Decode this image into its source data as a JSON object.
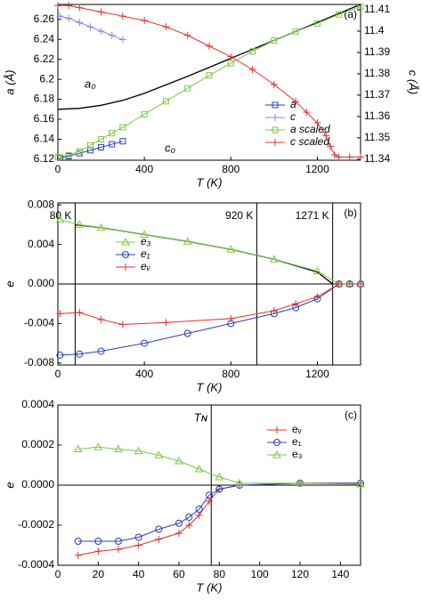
{
  "chart_data": [
    {
      "type": "line",
      "panel_label": "(a)",
      "xlabel": "T (K)",
      "ylabel": "a (Å)",
      "y2label": "c (Å)",
      "xlim": [
        0,
        1400
      ],
      "xticks": [
        0,
        400,
        800,
        1200
      ],
      "ylim": [
        6.119,
        6.275
      ],
      "yticks": [
        6.12,
        6.14,
        6.16,
        6.18,
        6.2,
        6.22,
        6.24,
        6.26
      ],
      "y2lim": [
        11.3395,
        11.4125
      ],
      "y2ticks": [
        11.34,
        11.35,
        11.36,
        11.37,
        11.38,
        11.39,
        11.4,
        11.41
      ],
      "annotations": [
        "a₀",
        "c₀"
      ],
      "legend": "lower right",
      "series": [
        {
          "name": "a",
          "color": "#2a3fb5",
          "marker": "square",
          "x": [
            10,
            50,
            100,
            150,
            200,
            250,
            300
          ],
          "values": [
            6.1215,
            6.123,
            6.126,
            6.129,
            6.132,
            6.135,
            6.138
          ]
        },
        {
          "name": "c",
          "color": "#9a7be0",
          "marker": "plus",
          "axis": "y2",
          "x": [
            10,
            50,
            100,
            150,
            200,
            250,
            300
          ],
          "values": [
            11.407,
            11.406,
            11.404,
            11.402,
            11.4,
            11.398,
            11.396
          ]
        },
        {
          "name": "a scaled",
          "color": "#7ac943",
          "marker": "square",
          "x": [
            0,
            50,
            100,
            150,
            200,
            250,
            300,
            400,
            500,
            600,
            700,
            800,
            900,
            1000,
            1100,
            1200,
            1300,
            1400
          ],
          "values": [
            6.122,
            6.124,
            6.128,
            6.134,
            6.14,
            6.146,
            6.152,
            6.165,
            6.178,
            6.191,
            6.204,
            6.216,
            6.228,
            6.239,
            6.248,
            6.256,
            6.265,
            6.273
          ]
        },
        {
          "name": "c scaled",
          "color": "#e0302a",
          "marker": "plus",
          "axis": "y2",
          "x": [
            0,
            50,
            100,
            200,
            300,
            400,
            500,
            600,
            700,
            800,
            900,
            1000,
            1100,
            1150,
            1200,
            1240,
            1260,
            1280,
            1300,
            1350,
            1400
          ],
          "values": [
            11.412,
            11.412,
            11.411,
            11.409,
            11.407,
            11.405,
            11.402,
            11.398,
            11.393,
            11.388,
            11.382,
            11.375,
            11.367,
            11.362,
            11.357,
            11.351,
            11.346,
            11.342,
            11.341,
            11.341,
            11.341
          ]
        }
      ],
      "fit": {
        "x": [
          0,
          100,
          200,
          300,
          400,
          600,
          800,
          1000,
          1200,
          1400
        ],
        "values": [
          6.17,
          6.171,
          6.174,
          6.179,
          6.186,
          6.203,
          6.221,
          6.239,
          6.257,
          6.275
        ]
      }
    },
    {
      "type": "line",
      "panel_label": "(b)",
      "xlabel": "T (K)",
      "ylabel": "e",
      "xlim": [
        0,
        1400
      ],
      "xticks": [
        0,
        400,
        800,
        1200
      ],
      "ylim": [
        -0.0082,
        0.0082
      ],
      "yticks": [
        -0.008,
        -0.004,
        {
          "value": 0,
          "label": "0.000"
        },
        0.004,
        0.008
      ],
      "vlines": [
        {
          "value": 80,
          "label": "80 K"
        },
        {
          "value": 920,
          "label": "920 K"
        },
        {
          "value": 1271,
          "label": "1271 K"
        }
      ],
      "legend": "center left",
      "series": [
        {
          "name": "e₃",
          "color": "#7ac943",
          "marker": "triangle",
          "x": [
            10,
            100,
            200,
            400,
            600,
            800,
            1000,
            1200,
            1300,
            1350,
            1400
          ],
          "values": [
            0.0065,
            0.006,
            0.0057,
            0.005,
            0.0043,
            0.0035,
            0.0025,
            0.0013,
            0,
            0,
            0
          ]
        },
        {
          "name": "e₁",
          "color": "#2a3fb5",
          "marker": "circle",
          "x": [
            10,
            100,
            200,
            400,
            600,
            800,
            1000,
            1100,
            1200,
            1300,
            1350,
            1400
          ],
          "values": [
            -0.0072,
            -0.0071,
            -0.0068,
            -0.006,
            -0.005,
            -0.004,
            -0.003,
            -0.0024,
            -0.0015,
            0,
            0,
            0
          ]
        },
        {
          "name": "eᵥ",
          "color": "#e0302a",
          "marker": "plus",
          "x": [
            10,
            100,
            200,
            300,
            500,
            800,
            1000,
            1100,
            1200,
            1300,
            1350,
            1400
          ],
          "values": [
            -0.003,
            -0.0029,
            -0.0036,
            -0.0041,
            -0.0039,
            -0.0035,
            -0.0027,
            -0.002,
            -0.0013,
            0,
            0,
            0
          ]
        }
      ],
      "fit": {
        "x": [
          80,
          200,
          400,
          600,
          800,
          1000,
          1200,
          1271
        ],
        "values": [
          0.006,
          0.0057,
          0.005,
          0.0043,
          0.0035,
          0.0025,
          0.0012,
          0
        ]
      }
    },
    {
      "type": "line",
      "panel_label": "(c)",
      "xlabel": "T (K)",
      "ylabel": "e",
      "xlim": [
        0,
        150
      ],
      "xticks": [
        0,
        20,
        40,
        60,
        80,
        100,
        120,
        140
      ],
      "ylim": [
        -0.0004,
        0.0004
      ],
      "yticks": [
        -0.0004,
        -0.0002,
        {
          "value": 0,
          "label": "0.0000"
        },
        0.0002,
        0.0004
      ],
      "vlines": [
        {
          "value": 76,
          "label": "Tɴ"
        }
      ],
      "legend": "upper right",
      "series": [
        {
          "name": "eᵥ",
          "color": "#e0302a",
          "marker": "plus",
          "x": [
            10,
            20,
            30,
            40,
            50,
            60,
            65,
            70,
            75,
            80,
            90,
            120,
            150
          ],
          "values": [
            -0.00035,
            -0.00033,
            -0.00032,
            -0.0003,
            -0.00027,
            -0.00024,
            -0.0002,
            -0.00015,
            -8e-05,
            -2e-05,
            0,
            1e-05,
            1e-05
          ]
        },
        {
          "name": "e₁",
          "color": "#2a3fb5",
          "marker": "circle",
          "x": [
            10,
            20,
            30,
            40,
            50,
            60,
            65,
            70,
            75,
            80,
            90,
            120,
            150
          ],
          "values": [
            -0.00028,
            -0.00028,
            -0.00028,
            -0.00026,
            -0.00022,
            -0.00019,
            -0.00016,
            -0.00012,
            -5e-05,
            -2e-05,
            0,
            1e-05,
            1e-05
          ]
        },
        {
          "name": "e₃",
          "color": "#7ac943",
          "marker": "triangle",
          "x": [
            10,
            20,
            30,
            40,
            50,
            60,
            70,
            80,
            90,
            120,
            150
          ],
          "values": [
            0.00018,
            0.00019,
            0.00018,
            0.00017,
            0.00015,
            0.00012,
            8e-05,
            4e-05,
            1e-05,
            1e-05,
            5e-06
          ]
        }
      ]
    }
  ]
}
